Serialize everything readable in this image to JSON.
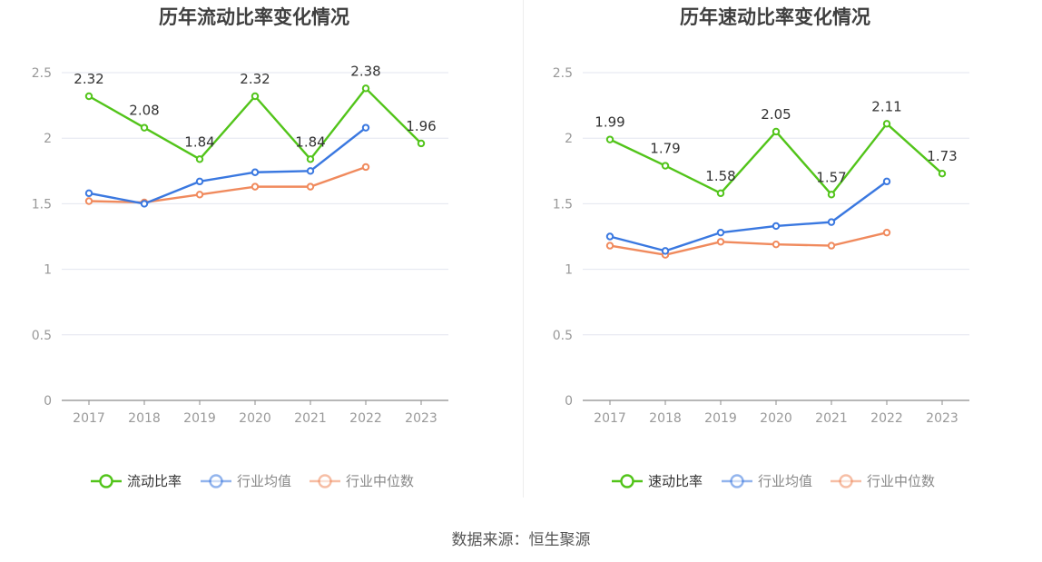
{
  "source_text": "数据来源：恒生聚源",
  "chart_data": [
    {
      "type": "line",
      "title": "历年流动比率变化情况",
      "categories": [
        "2017",
        "2018",
        "2019",
        "2020",
        "2021",
        "2022",
        "2023"
      ],
      "yticks": [
        "0",
        "0.5",
        "1",
        "1.5",
        "2",
        "2.5"
      ],
      "ylim": [
        0,
        2.5
      ],
      "grid": true,
      "legend_position": "bottom",
      "series": [
        {
          "name": "流动比率",
          "color": "#52c41a",
          "values": [
            2.32,
            2.08,
            1.84,
            2.32,
            1.84,
            2.38,
            1.96
          ],
          "labels": [
            "2.32",
            "2.08",
            "1.84",
            "2.32",
            "1.84",
            "2.38",
            "1.96"
          ],
          "labeled": true
        },
        {
          "name": "行业均值",
          "color": "#3a78e0",
          "values": [
            1.58,
            1.5,
            1.67,
            1.74,
            1.75,
            2.08,
            null
          ],
          "labeled": false
        },
        {
          "name": "行业中位数",
          "color": "#f08a5d",
          "values": [
            1.52,
            1.51,
            1.57,
            1.63,
            1.63,
            1.78,
            null
          ],
          "labeled": false
        }
      ]
    },
    {
      "type": "line",
      "title": "历年速动比率变化情况",
      "categories": [
        "2017",
        "2018",
        "2019",
        "2020",
        "2021",
        "2022",
        "2023"
      ],
      "yticks": [
        "0",
        "0.5",
        "1",
        "1.5",
        "2",
        "2.5"
      ],
      "ylim": [
        0,
        2.5
      ],
      "grid": true,
      "legend_position": "bottom",
      "series": [
        {
          "name": "速动比率",
          "color": "#52c41a",
          "values": [
            1.99,
            1.79,
            1.58,
            2.05,
            1.57,
            2.11,
            1.73
          ],
          "labels": [
            "1.99",
            "1.79",
            "1.58",
            "2.05",
            "1.57",
            "2.11",
            "1.73"
          ],
          "labeled": true
        },
        {
          "name": "行业均值",
          "color": "#3a78e0",
          "values": [
            1.25,
            1.14,
            1.28,
            1.33,
            1.36,
            1.67,
            null
          ],
          "labeled": false
        },
        {
          "name": "行业中位数",
          "color": "#f08a5d",
          "values": [
            1.18,
            1.11,
            1.21,
            1.19,
            1.18,
            1.28,
            null
          ],
          "labeled": false
        }
      ]
    }
  ]
}
